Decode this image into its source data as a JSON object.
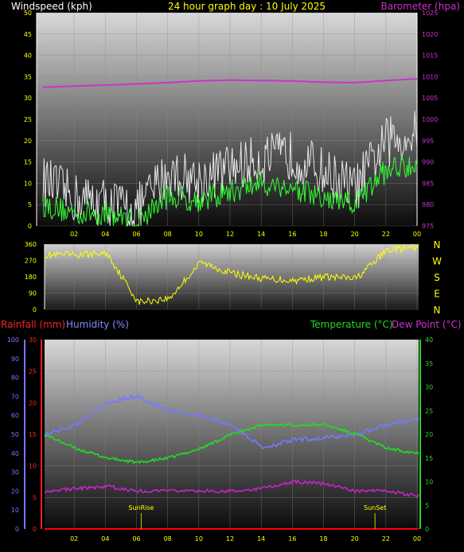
{
  "header": {
    "left_title": "Windspeed (kph)",
    "center_title": "24 hour graph day : 10 July 2025",
    "right_title": "Barometer (hpa)"
  },
  "colors": {
    "background": "#000000",
    "wind_gust": "#e8e8e8",
    "wind_avg": "#33ff33",
    "barometer": "#cc33cc",
    "direction": "#ffff00",
    "tick_label": "#ffff00",
    "rain": "#ff0000",
    "humidity": "#7777ff",
    "temperature": "#22dd22",
    "dewpoint": "#cc22cc",
    "axis_line": "#ffffff"
  },
  "time_ticks": [
    "02",
    "04",
    "06",
    "08",
    "10",
    "12",
    "14",
    "16",
    "18",
    "20",
    "22",
    "00"
  ],
  "chart_data": [
    {
      "type": "line",
      "title": "24 hour graph day : 10 July 2025",
      "ylabel": "Windspeed (kph)",
      "y2label": "Barometer (hpa)",
      "ylim": [
        0,
        50
      ],
      "y2lim": [
        975,
        1025
      ],
      "yticks": [
        "0",
        "5",
        "10",
        "15",
        "20",
        "25",
        "30",
        "35",
        "40",
        "45",
        "50"
      ],
      "y2ticks": [
        "975",
        "980",
        "985",
        "990",
        "995",
        "1000",
        "1005",
        "1010",
        "1015",
        "1020",
        "1025"
      ],
      "x": [
        "00",
        "02",
        "04",
        "06",
        "08",
        "10",
        "12",
        "14",
        "16",
        "18",
        "20",
        "22",
        "00"
      ],
      "series": [
        {
          "name": "Windspeed (kph)",
          "role": "gust",
          "values": [
            10,
            6,
            5,
            3,
            12,
            10,
            13,
            15,
            16,
            12,
            8,
            19,
            21
          ]
        },
        {
          "name": "Windspeed (kph)",
          "role": "average",
          "values": [
            5,
            3,
            3,
            1,
            7,
            6,
            8,
            10,
            9,
            6,
            5,
            13,
            15
          ]
        },
        {
          "name": "Barometer (hpa)",
          "axis": "right",
          "values": [
            1007.5,
            1007.8,
            1008.0,
            1008.3,
            1008.6,
            1009.0,
            1009.2,
            1009.1,
            1009.0,
            1008.7,
            1008.6,
            1009.1,
            1009.5
          ]
        }
      ]
    },
    {
      "type": "line",
      "ylabel": "",
      "ylim": [
        0,
        360
      ],
      "yticks": [
        "0",
        "90",
        "180",
        "270",
        "360"
      ],
      "compass": [
        "N",
        "W",
        "S",
        "E",
        "N"
      ],
      "x": [
        "00",
        "02",
        "04",
        "06",
        "08",
        "10",
        "12",
        "14",
        "16",
        "18",
        "20",
        "22",
        "00"
      ],
      "series": [
        {
          "name": "Wind direction",
          "values": [
            300,
            300,
            310,
            40,
            60,
            260,
            200,
            170,
            160,
            180,
            170,
            330,
            340
          ]
        }
      ]
    },
    {
      "type": "line",
      "legend": [
        "Rainfall (mm)",
        "Humidity (%)",
        "Temperature (°C)",
        "Dew Point (°C)"
      ],
      "y_rain_ticks": [
        "0",
        "5",
        "10",
        "15",
        "20",
        "25",
        "30"
      ],
      "y_hum_ticks": [
        "0",
        "10",
        "20",
        "30",
        "40",
        "50",
        "60",
        "70",
        "80",
        "90",
        "100"
      ],
      "y_temp_ticks": [
        "0",
        "5",
        "10",
        "15",
        "20",
        "25",
        "30",
        "35",
        "40"
      ],
      "rain_lim": [
        0,
        30
      ],
      "hum_lim": [
        0,
        100
      ],
      "temp_lim": [
        0,
        40
      ],
      "x": [
        "00",
        "02",
        "04",
        "06",
        "08",
        "10",
        "12",
        "14",
        "16",
        "18",
        "20",
        "22",
        "00"
      ],
      "series": [
        {
          "name": "Rainfall (mm)",
          "values": [
            0,
            0,
            0,
            0,
            0,
            0,
            0,
            0,
            0,
            0,
            0,
            0,
            0
          ]
        },
        {
          "name": "Humidity (%)",
          "values": [
            50,
            55,
            67,
            70,
            62,
            60,
            55,
            43,
            47,
            48,
            50,
            55,
            58
          ]
        },
        {
          "name": "Temperature (°C)",
          "values": [
            20,
            17,
            15,
            14,
            15,
            17,
            20,
            22,
            22,
            22,
            20,
            17,
            16
          ]
        },
        {
          "name": "Dew Point (°C)",
          "values": [
            8,
            8.5,
            9,
            8,
            8,
            8,
            8,
            8.5,
            10,
            9.5,
            8,
            8,
            7
          ]
        }
      ],
      "annotations": [
        {
          "text": "SunRise",
          "x_hour": 6.2
        },
        {
          "text": "SunSet",
          "x_hour": 21.2
        }
      ]
    }
  ]
}
